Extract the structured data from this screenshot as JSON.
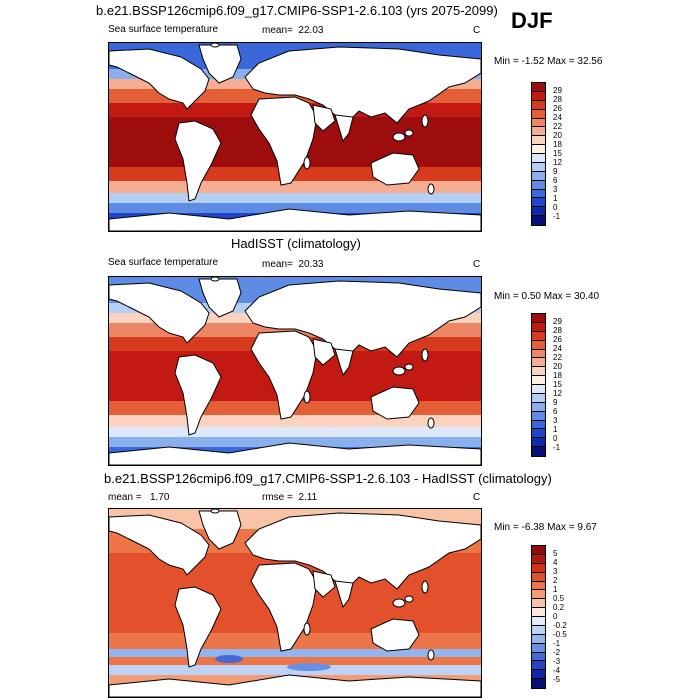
{
  "header": {
    "season": "DJF"
  },
  "panels": [
    {
      "title": "b.e21.BSSP126cmip6.f09_g17.CMIP6-SSP1-2.6.103 (yrs 2075-2099)",
      "variable": "Sea surface temperature",
      "stat_label": "mean=",
      "stat_value": "22.03",
      "units": "C",
      "min_label": "Min =",
      "min_value": "-1.52",
      "max_label": "Max =",
      "max_value": "32.56"
    },
    {
      "title": "HadISST (climatology)",
      "variable": "Sea surface temperature",
      "stat_label": "mean=",
      "stat_value": "20.33",
      "units": "C",
      "min_label": "Min =",
      "min_value": "0.50",
      "max_label": "Max =",
      "max_value": "30.40"
    },
    {
      "title": "b.e21.BSSP126cmip6.f09_g17.CMIP6-SSP1-2.6.103 - HadISST (climatology)",
      "stat_label": "mean =",
      "stat_value": "1.70",
      "rmse_label": "rmse =",
      "rmse_value": "2.11",
      "units": "C",
      "min_label": "Min =",
      "min_value": "-6.38",
      "max_label": "Max =",
      "max_value": "9.67"
    }
  ],
  "chart_data": [
    {
      "type": "heatmap",
      "title": "b.e21.BSSP126cmip6.f09_g17.CMIP6-SSP1-2.6.103 (yrs 2075-2099)",
      "variable": "Sea surface temperature",
      "units": "C",
      "mean": 22.03,
      "min": -1.52,
      "max": 32.56,
      "colorbar_levels": [
        "29",
        "28",
        "26",
        "24",
        "22",
        "20",
        "18",
        "15",
        "12",
        "9",
        "6",
        "3",
        "1",
        "0",
        "-1"
      ],
      "colorbar_colors": [
        "#9e0d0d",
        "#c21a12",
        "#d83a1e",
        "#e45f36",
        "#ee8665",
        "#f5ae92",
        "#fad2c0",
        "#fdf0e4",
        "#dde9fa",
        "#b3cff3",
        "#8ab0ec",
        "#5e8ce4",
        "#3a68db",
        "#1f45c8",
        "#0d2aa8",
        "#040f78"
      ]
    },
    {
      "type": "heatmap",
      "title": "HadISST (climatology)",
      "variable": "Sea surface temperature",
      "units": "C",
      "mean": 20.33,
      "min": 0.5,
      "max": 30.4,
      "colorbar_levels": [
        "29",
        "28",
        "26",
        "24",
        "22",
        "20",
        "18",
        "15",
        "12",
        "9",
        "6",
        "3",
        "1",
        "0",
        "-1"
      ],
      "colorbar_colors": [
        "#9e0d0d",
        "#c21a12",
        "#d83a1e",
        "#e45f36",
        "#ee8665",
        "#f5ae92",
        "#fad2c0",
        "#fdf0e4",
        "#dde9fa",
        "#b3cff3",
        "#8ab0ec",
        "#5e8ce4",
        "#3a68db",
        "#1f45c8",
        "#0d2aa8",
        "#040f78"
      ]
    },
    {
      "type": "heatmap",
      "title": "b.e21.BSSP126cmip6.f09_g17.CMIP6-SSP1-2.6.103 - HadISST (climatology)",
      "units": "C",
      "mean": 1.7,
      "rmse": 2.11,
      "min": -6.38,
      "max": 9.67,
      "colorbar_levels": [
        "5",
        "4",
        "3",
        "2",
        "1",
        "0.5",
        "0.2",
        "0",
        "-0.2",
        "-0.5",
        "-1",
        "-2",
        "-3",
        "-4",
        "-5"
      ],
      "colorbar_colors": [
        "#8e0c0c",
        "#b5180f",
        "#d2301a",
        "#e2512c",
        "#ec7648",
        "#f39c78",
        "#f9c3a8",
        "#fde6da",
        "#e4ecfb",
        "#bdd2f4",
        "#93b4ec",
        "#6890e2",
        "#436ad6",
        "#2646c0",
        "#1029a0",
        "#050f74"
      ]
    }
  ]
}
